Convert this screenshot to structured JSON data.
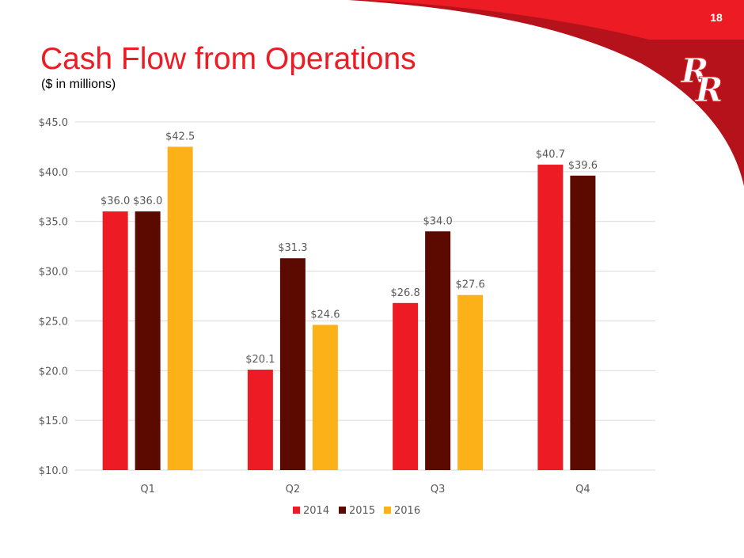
{
  "slide": {
    "number": "18",
    "title": "Cash Flow from Operations",
    "subtitle": "($ in millions)"
  },
  "logo": {
    "name": "rr-monogram-logo",
    "text": "RR"
  },
  "colors": {
    "2014": "#ED1C24",
    "2015": "#5C0A00",
    "2016": "#FDB119",
    "corner": "#ED1C24",
    "corner_dark": "#B5121B"
  },
  "chart_data": {
    "type": "bar",
    "categories": [
      "Q1",
      "Q2",
      "Q3",
      "Q4"
    ],
    "series": [
      {
        "name": "2014",
        "values": [
          36.0,
          20.1,
          26.8,
          40.7
        ],
        "labels": [
          "$36.0",
          "$20.1",
          "$26.8",
          "$40.7"
        ]
      },
      {
        "name": "2015",
        "values": [
          36.0,
          31.3,
          34.0,
          39.6
        ],
        "labels": [
          "$36.0",
          "$31.3",
          "$34.0",
          "$39.6"
        ]
      },
      {
        "name": "2016",
        "values": [
          42.5,
          24.6,
          27.6,
          null
        ],
        "labels": [
          "$42.5",
          "$24.6",
          "$27.6",
          null
        ]
      }
    ],
    "ylim": [
      10.0,
      45.0
    ],
    "yticks": [
      10,
      15,
      20,
      25,
      30,
      35,
      40,
      45
    ],
    "ytick_labels": [
      "$10.0",
      "$15.0",
      "$20.0",
      "$25.0",
      "$30.0",
      "$35.0",
      "$40.0",
      "$45.0"
    ],
    "grid": true,
    "legend": "bottom"
  }
}
